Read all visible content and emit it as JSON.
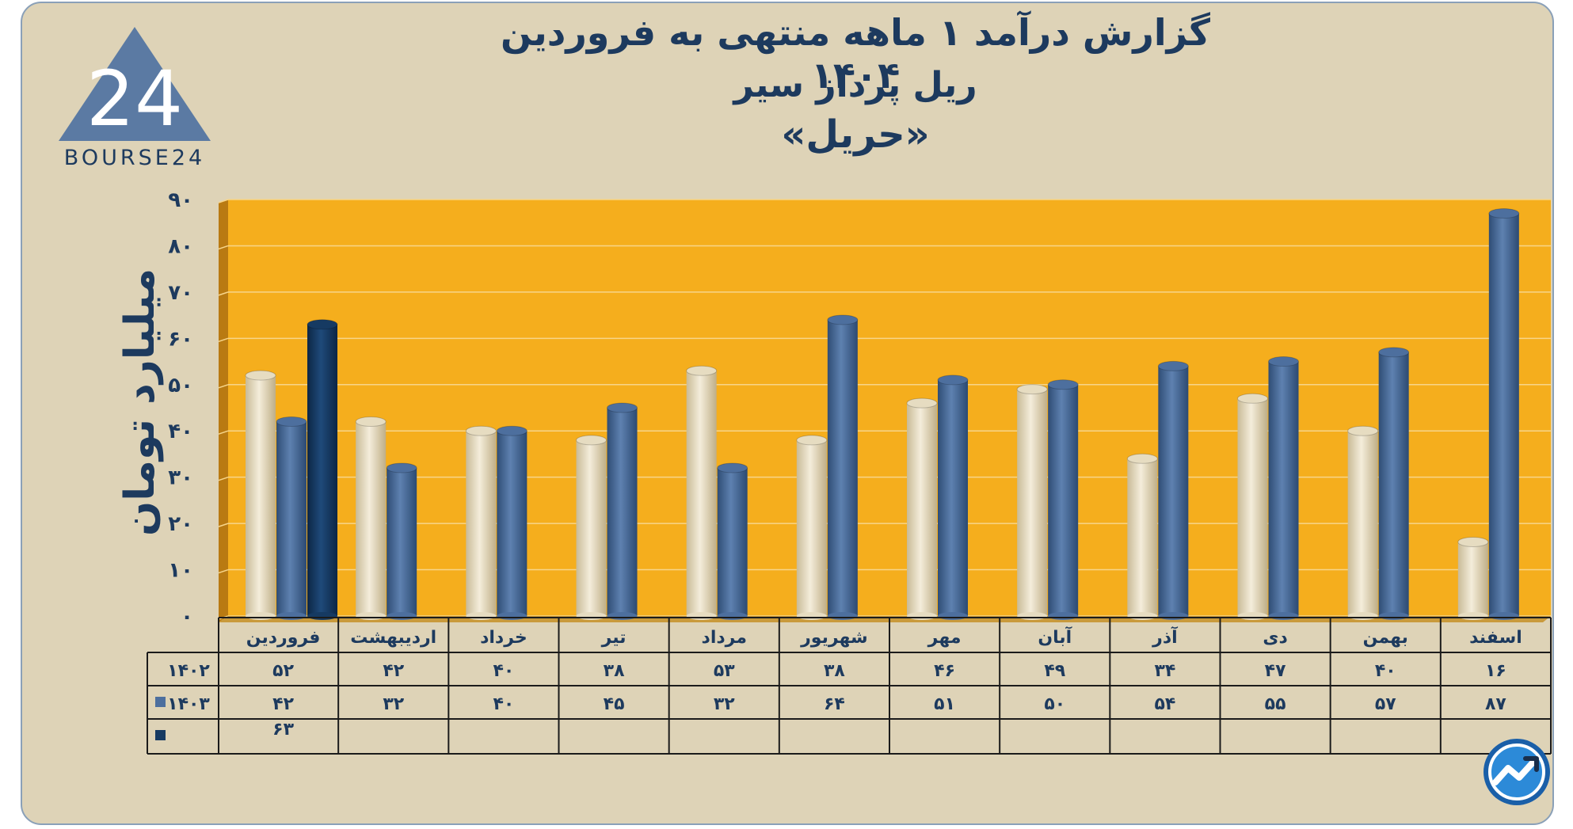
{
  "title": {
    "line1": "گزارش  درآمد ۱ ماهه منتهی به فروردین ۱۴۰۴",
    "line2": "ریل پرداز سیر",
    "line3": "«حریل»"
  },
  "logo": {
    "text": "BOURSE24",
    "mark": "24"
  },
  "colors": {
    "plot_bg": "#f5ae1d",
    "series_1402": "#e6dcc1",
    "series_1403": "#4d6f9e",
    "series_1404": "#163a62",
    "text": "#1d3a5e",
    "card_bg": "#ded3b7"
  },
  "chart_data": {
    "type": "bar",
    "ylabel": "میلیارد تومان",
    "ylim": [
      0,
      90
    ],
    "yticks": [
      "۰",
      "۱۰",
      "۲۰",
      "۳۰",
      "۴۰",
      "۵۰",
      "۶۰",
      "۷۰",
      "۸۰",
      "۹۰"
    ],
    "grid": true,
    "categories": [
      "فروردین",
      "اردیبهشت",
      "خرداد",
      "تیر",
      "مرداد",
      "شهریور",
      "مهر",
      "آبان",
      "آذر",
      "دی",
      "بهمن",
      "اسفند"
    ],
    "series": [
      {
        "name": "۱۴۰۲",
        "values": [
          52,
          42,
          40,
          38,
          53,
          38,
          46,
          49,
          34,
          47,
          40,
          16
        ],
        "labels": [
          "۵۲",
          "۴۲",
          "۴۰",
          "۳۸",
          "۵۳",
          "۳۸",
          "۴۶",
          "۴۹",
          "۳۴",
          "۴۷",
          "۴۰",
          "۱۶"
        ]
      },
      {
        "name": "۱۴۰۳",
        "values": [
          42,
          32,
          40,
          45,
          32,
          64,
          51,
          50,
          54,
          55,
          57,
          87
        ],
        "labels": [
          "۴۲",
          "۳۲",
          "۴۰",
          "۴۵",
          "۳۲",
          "۶۴",
          "۵۱",
          "۵۰",
          "۵۴",
          "۵۵",
          "۵۷",
          "۸۷"
        ]
      },
      {
        "name": "",
        "values": [
          63,
          null,
          null,
          null,
          null,
          null,
          null,
          null,
          null,
          null,
          null,
          null
        ],
        "labels": [
          "۶۳",
          "",
          "",
          "",
          "",
          "",
          "",
          "",
          "",
          "",
          "",
          ""
        ]
      }
    ]
  }
}
